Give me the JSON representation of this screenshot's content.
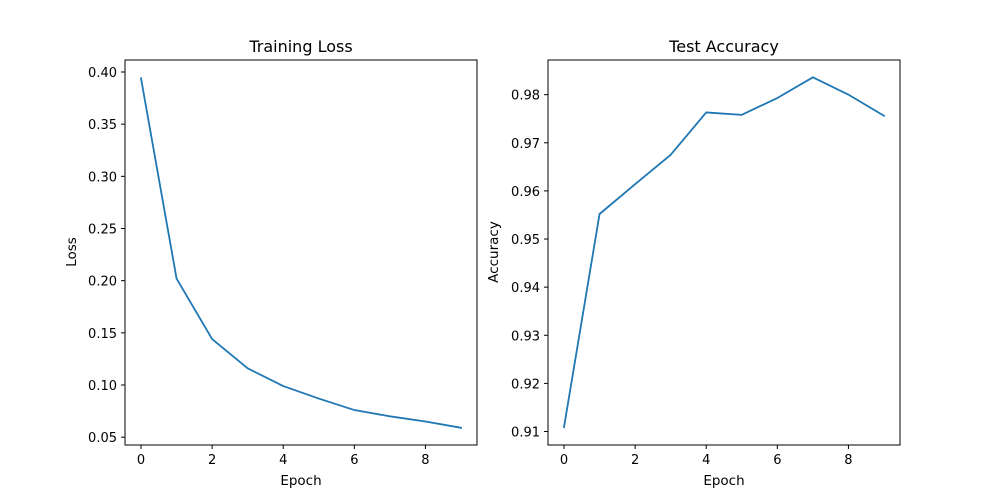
{
  "chart_data": [
    {
      "type": "line",
      "title": "Training Loss",
      "xlabel": "Epoch",
      "ylabel": "Loss",
      "xlim": [
        -0.45,
        9.45
      ],
      "ylim": [
        0.0425,
        0.4115
      ],
      "xticks": [
        0,
        2,
        4,
        6,
        8
      ],
      "xtick_labels": [
        "0",
        "2",
        "4",
        "6",
        "8"
      ],
      "yticks": [
        0.05,
        0.1,
        0.15,
        0.2,
        0.25,
        0.3,
        0.35,
        0.4
      ],
      "ytick_labels": [
        "0.05",
        "0.10",
        "0.15",
        "0.20",
        "0.25",
        "0.30",
        "0.35",
        "0.40"
      ],
      "grid": false,
      "x": [
        0,
        1,
        2,
        3,
        4,
        5,
        6,
        7,
        8,
        9
      ],
      "series": [
        {
          "values": [
            0.394,
            0.202,
            0.144,
            0.116,
            0.099,
            0.087,
            0.076,
            0.07,
            0.065,
            0.059
          ],
          "color": "#1f77b4"
        }
      ]
    },
    {
      "type": "line",
      "title": "Test Accuracy",
      "xlabel": "Epoch",
      "ylabel": "Accuracy",
      "xlim": [
        -0.45,
        9.45
      ],
      "ylim": [
        0.9072,
        0.9872
      ],
      "xticks": [
        0,
        2,
        4,
        6,
        8
      ],
      "xtick_labels": [
        "0",
        "2",
        "4",
        "6",
        "8"
      ],
      "yticks": [
        0.91,
        0.92,
        0.93,
        0.94,
        0.95,
        0.96,
        0.97,
        0.98
      ],
      "ytick_labels": [
        "0.91",
        "0.92",
        "0.93",
        "0.94",
        "0.95",
        "0.96",
        "0.97",
        "0.98"
      ],
      "grid": false,
      "x": [
        0,
        1,
        2,
        3,
        4,
        5,
        6,
        7,
        8,
        9
      ],
      "series": [
        {
          "values": [
            0.9109,
            0.9552,
            0.9614,
            0.9675,
            0.9763,
            0.9758,
            0.9793,
            0.9836,
            0.98,
            0.9756
          ],
          "color": "#1f77b4"
        }
      ]
    }
  ]
}
